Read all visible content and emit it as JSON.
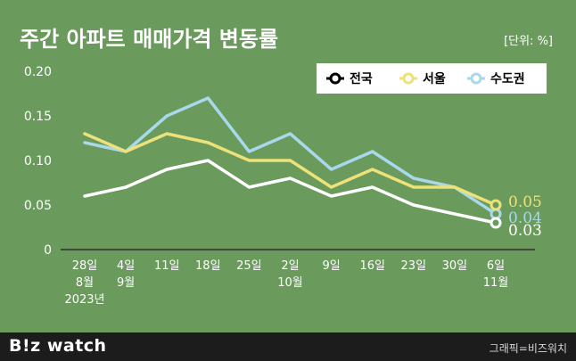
{
  "chart_data": {
    "type": "line",
    "title": "주간 아파트 매매가격 변동률",
    "unit_label": "[단위: %]",
    "ylim": [
      0,
      0.2
    ],
    "yticks": [
      "0.20",
      "0.15",
      "0.10",
      "0.05",
      "0"
    ],
    "ytick_values": [
      0.2,
      0.15,
      0.1,
      0.05,
      0
    ],
    "categories": [
      [
        "28일",
        "8월",
        "2023년"
      ],
      [
        "4일",
        "9월"
      ],
      [
        "11일"
      ],
      [
        "18일"
      ],
      [
        "25일"
      ],
      [
        "2일",
        "10월"
      ],
      [
        "9일"
      ],
      [
        "16일"
      ],
      [
        "23일"
      ],
      [
        "30일"
      ],
      [
        "6일",
        "11월"
      ]
    ],
    "series": [
      {
        "name": "전국",
        "color": "#ffffff",
        "values": [
          0.06,
          0.07,
          0.09,
          0.1,
          0.07,
          0.08,
          0.06,
          0.07,
          0.05,
          0.04,
          0.03
        ],
        "end_label": "0.03"
      },
      {
        "name": "서울",
        "color": "#ede17a",
        "values": [
          0.13,
          0.11,
          0.13,
          0.12,
          0.1,
          0.1,
          0.07,
          0.09,
          0.07,
          0.07,
          0.05
        ],
        "end_label": "0.05"
      },
      {
        "name": "수도권",
        "color": "#a8d8ea",
        "values": [
          0.12,
          0.11,
          0.15,
          0.17,
          0.11,
          0.13,
          0.09,
          0.11,
          0.08,
          0.07,
          0.04
        ],
        "end_label": "0.04"
      }
    ],
    "legend_position": "top-right",
    "grid": false
  },
  "footer": {
    "brand": "B!z watch",
    "credit": "그래픽=비즈워치"
  }
}
